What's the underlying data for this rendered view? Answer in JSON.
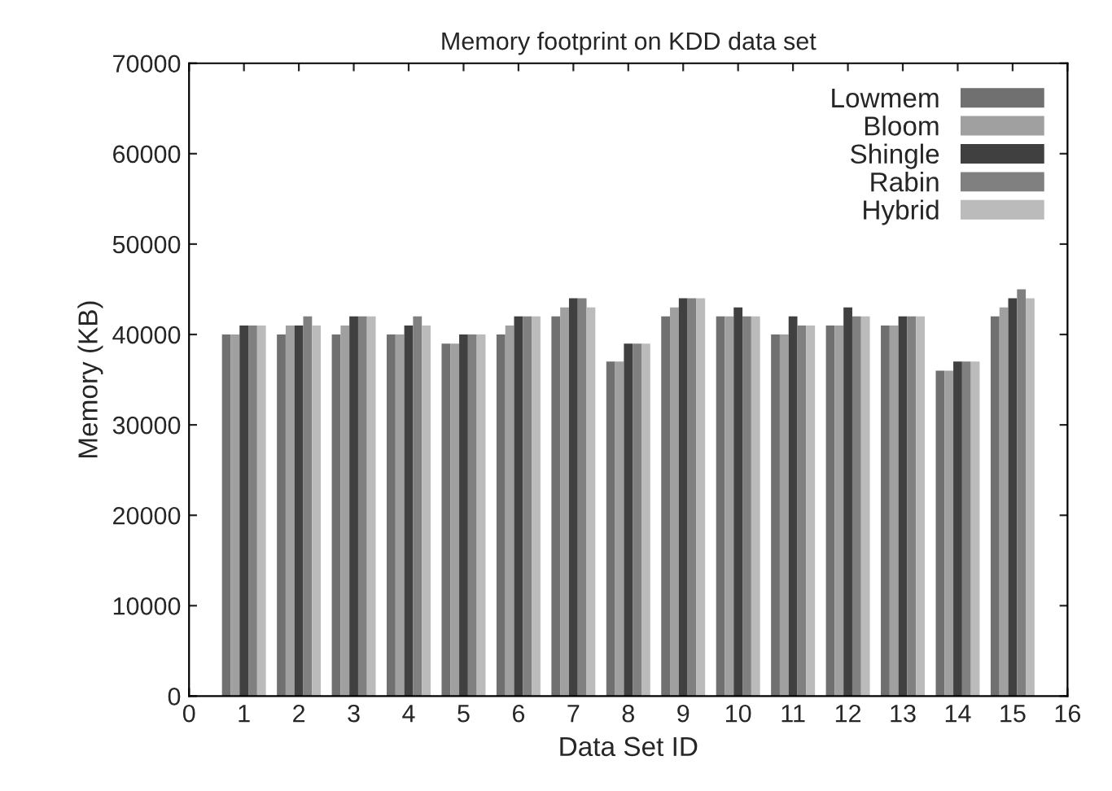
{
  "chart_data": {
    "type": "bar",
    "title": "Memory footprint on KDD data set",
    "xlabel": "Data Set ID",
    "ylabel": "Memory (KB)",
    "x": [
      1,
      2,
      3,
      4,
      5,
      6,
      7,
      8,
      9,
      10,
      11,
      12,
      13,
      14,
      15
    ],
    "xlim": [
      0,
      16
    ],
    "xticks": [
      0,
      1,
      2,
      3,
      4,
      5,
      6,
      7,
      8,
      9,
      10,
      11,
      12,
      13,
      14,
      15,
      16
    ],
    "ylim": [
      0,
      70000
    ],
    "yticks": [
      0,
      10000,
      20000,
      30000,
      40000,
      50000,
      60000,
      70000
    ],
    "grid": false,
    "legend": "top right",
    "series": [
      {
        "name": "Lowmem",
        "color": "#707070",
        "values": [
          40000,
          40000,
          40000,
          40000,
          39000,
          40000,
          42000,
          37000,
          42000,
          42000,
          40000,
          41000,
          41000,
          36000,
          42000
        ]
      },
      {
        "name": "Bloom",
        "color": "#a0a0a0",
        "values": [
          40000,
          41000,
          41000,
          40000,
          39000,
          41000,
          43000,
          37000,
          43000,
          42000,
          40000,
          41000,
          41000,
          36000,
          43000
        ]
      },
      {
        "name": "Shingle",
        "color": "#404040",
        "values": [
          41000,
          41000,
          42000,
          41000,
          40000,
          42000,
          44000,
          39000,
          44000,
          43000,
          42000,
          43000,
          42000,
          37000,
          44000
        ]
      },
      {
        "name": "Rabin",
        "color": "#808080",
        "values": [
          41000,
          42000,
          42000,
          42000,
          40000,
          42000,
          44000,
          39000,
          44000,
          42000,
          41000,
          42000,
          42000,
          37000,
          45000
        ]
      },
      {
        "name": "Hybrid",
        "color": "#bbbbbb",
        "values": [
          41000,
          41000,
          42000,
          41000,
          40000,
          42000,
          43000,
          39000,
          44000,
          42000,
          41000,
          42000,
          42000,
          37000,
          44000
        ]
      }
    ]
  }
}
